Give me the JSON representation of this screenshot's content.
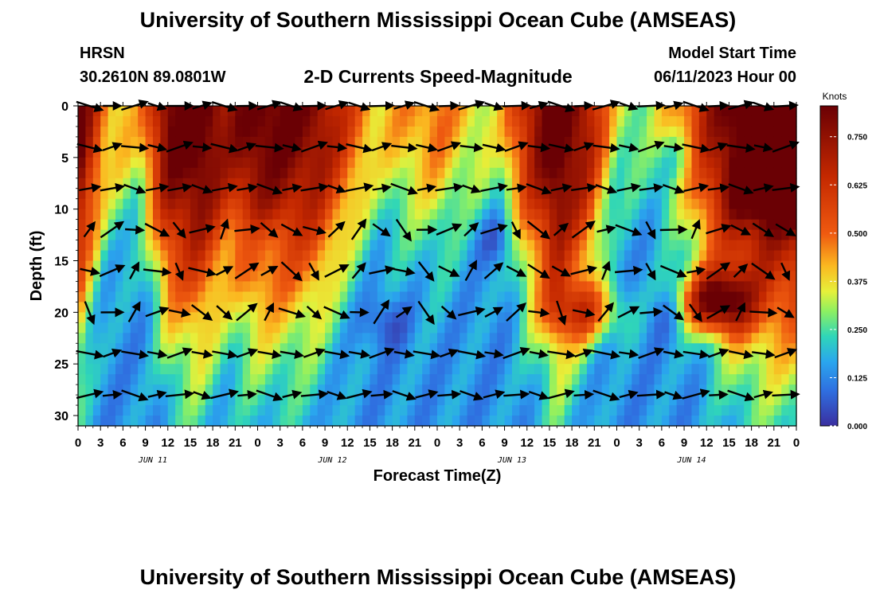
{
  "page": {
    "title": "University of Southern Mississippi Ocean Cube (AMSEAS)",
    "footer_title": "University of Southern Mississippi Ocean Cube (AMSEAS)",
    "station": "HRSN",
    "coords": "30.2610N  89.0801W",
    "subtitle": "2-D Currents Speed-Magnitude",
    "model_start_label": "Model Start Time",
    "model_start_value": "06/11/2023 Hour 00"
  },
  "chart_data": {
    "type": "heatmap",
    "xlabel": "Forecast Time(Z)",
    "ylabel": "Depth (ft)",
    "colorbar_label": "Knots",
    "colorbar_ticks": [
      "0.000",
      "0.125",
      "0.250",
      "0.375",
      "0.500",
      "0.625",
      "0.750"
    ],
    "colorbar_range": [
      0,
      0.83
    ],
    "x_hours_range": [
      0,
      96
    ],
    "x_tick_labels": [
      "0",
      "3",
      "6",
      "9",
      "12",
      "15",
      "18",
      "21",
      "0",
      "3",
      "6",
      "9",
      "12",
      "15",
      "18",
      "21",
      "0",
      "3",
      "6",
      "9",
      "12",
      "15",
      "18",
      "21",
      "0",
      "3",
      "6",
      "9",
      "12",
      "15",
      "18",
      "21",
      "0"
    ],
    "day_labels": [
      "JUN 11",
      "JUN 12",
      "JUN 13",
      "JUN 14"
    ],
    "y_range": [
      0,
      31
    ],
    "y_reversed": true,
    "y_ticks": [
      "0",
      "5",
      "10",
      "15",
      "20",
      "25",
      "30"
    ],
    "colors": [
      "#3a2fa0",
      "#2f6fe0",
      "#2aa6ee",
      "#2fd6b8",
      "#8ff060",
      "#e6f03a",
      "#fbb820",
      "#ef5a10",
      "#c42800",
      "#6a0004"
    ],
    "speed_profile_knots": [
      0.75,
      0.3,
      0.25,
      0.7,
      0.78,
      0.6,
      0.72,
      0.7,
      0.65,
      0.45,
      0.25,
      0.3,
      0.35,
      0.25,
      0.2,
      0.55,
      0.8,
      0.6,
      0.2,
      0.15,
      0.3,
      0.55,
      0.75,
      0.8,
      0.82
    ],
    "vector_depths_ft": [
      0,
      4,
      8,
      12,
      16,
      20,
      24,
      28
    ]
  }
}
